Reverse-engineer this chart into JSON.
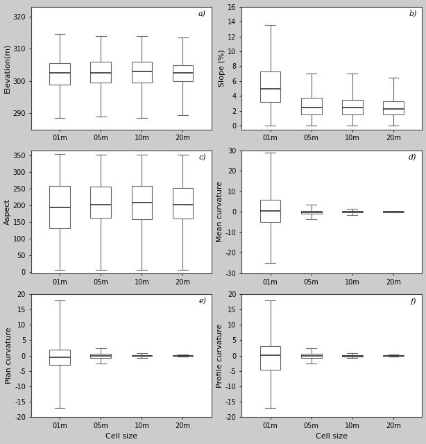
{
  "categories": [
    "01m",
    "05m",
    "10m",
    "20m"
  ],
  "subplot_labels": [
    "a)",
    "b)",
    "c)",
    "d)",
    "e)",
    "f)"
  ],
  "elevation": {
    "ylabel": "Elevation(m)",
    "ylim": [
      285,
      323
    ],
    "yticks": [
      290,
      300,
      310,
      320
    ],
    "boxes": [
      {
        "whislo": 288.5,
        "q1": 299.0,
        "med": 302.5,
        "q3": 305.5,
        "whishi": 314.5
      },
      {
        "whislo": 289.0,
        "q1": 299.5,
        "med": 302.5,
        "q3": 306.0,
        "whishi": 314.0
      },
      {
        "whislo": 288.5,
        "q1": 299.5,
        "med": 303.0,
        "q3": 306.0,
        "whishi": 314.0
      },
      {
        "whislo": 289.5,
        "q1": 300.0,
        "med": 302.5,
        "q3": 305.0,
        "whishi": 313.5
      }
    ]
  },
  "slope": {
    "ylabel": "Slope (%)",
    "ylim": [
      -0.5,
      16
    ],
    "yticks": [
      0,
      2,
      4,
      6,
      8,
      10,
      12,
      14,
      16
    ],
    "boxes": [
      {
        "whislo": 0.0,
        "q1": 3.2,
        "med": 5.0,
        "q3": 7.3,
        "whishi": 13.5
      },
      {
        "whislo": 0.0,
        "q1": 1.5,
        "med": 2.5,
        "q3": 3.8,
        "whishi": 7.0
      },
      {
        "whislo": 0.0,
        "q1": 1.5,
        "med": 2.5,
        "q3": 3.5,
        "whishi": 7.0
      },
      {
        "whislo": 0.0,
        "q1": 1.5,
        "med": 2.3,
        "q3": 3.3,
        "whishi": 6.5
      }
    ]
  },
  "aspect": {
    "ylabel": "Aspect",
    "ylim": [
      -5,
      365
    ],
    "yticks": [
      0,
      50,
      100,
      150,
      200,
      250,
      300,
      350
    ],
    "boxes": [
      {
        "whislo": 5.0,
        "q1": 130.0,
        "med": 193.0,
        "q3": 258.0,
        "whishi": 355.0
      },
      {
        "whislo": 5.0,
        "q1": 163.0,
        "med": 202.0,
        "q3": 255.0,
        "whishi": 352.0
      },
      {
        "whislo": 5.0,
        "q1": 158.0,
        "med": 207.0,
        "q3": 258.0,
        "whishi": 352.0
      },
      {
        "whislo": 5.0,
        "q1": 160.0,
        "med": 202.0,
        "q3": 252.0,
        "whishi": 352.0
      }
    ]
  },
  "mean_curvature": {
    "ylabel": "Mean curvature",
    "ylim": [
      -30,
      30
    ],
    "yticks": [
      -30,
      -20,
      -10,
      0,
      10,
      20,
      30
    ],
    "boxes": [
      {
        "whislo": -25.0,
        "q1": -5.0,
        "med": 0.5,
        "q3": 6.0,
        "whishi": 29.0
      },
      {
        "whislo": -3.5,
        "q1": -0.8,
        "med": -0.2,
        "q3": 0.5,
        "whishi": 3.5
      },
      {
        "whislo": -1.5,
        "q1": -0.3,
        "med": 0.0,
        "q3": 0.3,
        "whishi": 1.5
      },
      {
        "whislo": -0.3,
        "q1": -0.08,
        "med": -0.01,
        "q3": 0.05,
        "whishi": 0.3
      }
    ]
  },
  "plan_curvature": {
    "ylabel": "Plan curvature",
    "xlabel": "Cell size",
    "ylim": [
      -20,
      20
    ],
    "yticks": [
      -20,
      -15,
      -10,
      -5,
      0,
      5,
      10,
      15,
      20
    ],
    "boxes": [
      {
        "whislo": -17.0,
        "q1": -3.0,
        "med": -0.5,
        "q3": 2.0,
        "whishi": 18.0
      },
      {
        "whislo": -2.5,
        "q1": -0.8,
        "med": -0.15,
        "q3": 0.5,
        "whishi": 2.5
      },
      {
        "whislo": -0.8,
        "q1": -0.15,
        "med": -0.02,
        "q3": 0.1,
        "whishi": 0.8
      },
      {
        "whislo": -0.4,
        "q1": -0.06,
        "med": -0.01,
        "q3": 0.04,
        "whishi": 0.35
      }
    ]
  },
  "profile_curvature": {
    "ylabel": "Profile curvature",
    "xlabel": "Cell size",
    "ylim": [
      -20,
      20
    ],
    "yticks": [
      -20,
      -15,
      -10,
      -5,
      0,
      5,
      10,
      15,
      20
    ],
    "boxes": [
      {
        "whislo": -17.0,
        "q1": -4.5,
        "med": 0.2,
        "q3": 3.0,
        "whishi": 18.0
      },
      {
        "whislo": -2.5,
        "q1": -0.8,
        "med": -0.1,
        "q3": 0.5,
        "whishi": 2.5
      },
      {
        "whislo": -0.8,
        "q1": -0.2,
        "med": -0.02,
        "q3": 0.15,
        "whishi": 0.8
      },
      {
        "whislo": -0.3,
        "q1": -0.06,
        "med": -0.01,
        "q3": 0.04,
        "whishi": 0.3
      }
    ]
  },
  "box_color": "#ffffff",
  "median_color": "#333333",
  "whisker_color": "#666666",
  "box_edge_color": "#666666",
  "cap_color": "#666666",
  "ax_background": "#ffffff",
  "figure_background": "#cccccc",
  "figsize": [
    6.14,
    6.4
  ],
  "dpi": 100
}
